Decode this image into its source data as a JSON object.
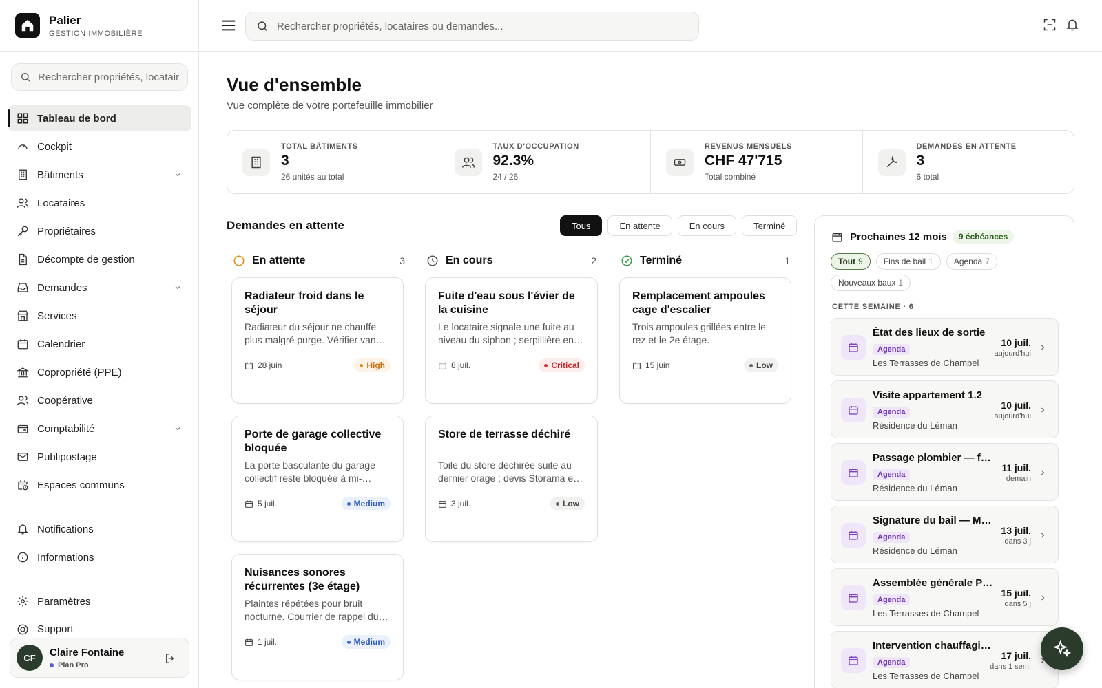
{
  "brand": {
    "name": "Palier",
    "subtitle": "GESTION IMMOBILIÈRE"
  },
  "sidebar": {
    "search_placeholder": "Rechercher propriétés, locataires ou demandes...",
    "items": [
      {
        "label": "Tableau de bord",
        "icon": "grid-icon",
        "active": true
      },
      {
        "label": "Cockpit",
        "icon": "gauge-icon"
      },
      {
        "label": "Bâtiments",
        "icon": "building-icon",
        "expandable": true
      },
      {
        "label": "Locataires",
        "icon": "users-icon"
      },
      {
        "label": "Propriétaires",
        "icon": "key-icon"
      },
      {
        "label": "Décompte de gestion",
        "icon": "document-icon"
      },
      {
        "label": "Demandes",
        "icon": "inbox-icon",
        "expandable": true
      },
      {
        "label": "Services",
        "icon": "store-icon"
      },
      {
        "label": "Calendrier",
        "icon": "calendar-icon"
      },
      {
        "label": "Copropriété (PPE)",
        "icon": "bank-icon"
      },
      {
        "label": "Coopérative",
        "icon": "users-icon"
      },
      {
        "label": "Comptabilité",
        "icon": "wallet-icon",
        "expandable": true
      },
      {
        "label": "Publipostage",
        "icon": "mail-icon"
      },
      {
        "label": "Espaces communs",
        "icon": "calendar-clock-icon"
      },
      {
        "label": "Notifications",
        "icon": "bell-icon"
      },
      {
        "label": "Informations",
        "icon": "info-icon"
      },
      {
        "label": "Paramètres",
        "icon": "gear-icon"
      },
      {
        "label": "Support",
        "icon": "lifebuoy-icon"
      }
    ],
    "user": {
      "initials": "CF",
      "name": "Claire Fontaine",
      "plan": "Plan Pro"
    }
  },
  "header": {
    "search_placeholder": "Rechercher propriétés, locataires ou demandes..."
  },
  "main": {
    "title": "Vue d'ensemble",
    "subtitle": "Vue complète de votre portefeuille immobilier",
    "stats": [
      {
        "label": "TOTAL BÂTIMENTS",
        "value": "3",
        "note": "26 unités au total",
        "icon": "building-icon"
      },
      {
        "label": "TAUX D'OCCUPATION",
        "value": "92.3%",
        "note": "24 / 26",
        "icon": "users-icon"
      },
      {
        "label": "REVENUS MENSUELS",
        "value": "CHF 47'715",
        "note": "Total combiné",
        "icon": "banknote-icon"
      },
      {
        "label": "DEMANDES EN ATTENTE",
        "value": "3",
        "note": "6 total",
        "icon": "wrench-icon"
      }
    ],
    "requests_title": "Demandes en attente",
    "filters": [
      "Tous",
      "En attente",
      "En cours",
      "Terminé"
    ],
    "columns": [
      {
        "title": "En attente",
        "count": "3",
        "status_color": "#e58c10",
        "cards": [
          {
            "title": "Radiateur froid dans le séjour",
            "desc": "Radiateur du séjour ne chauffe plus malgré purge. Vérifier vanne thermostatique.",
            "date": "28 juin",
            "priority": "High"
          },
          {
            "title": "Porte de garage collective bloquée",
            "desc": "La porte basculante du garage collectif reste bloquée à mi-course.",
            "date": "5 juil.",
            "priority": "Medium"
          },
          {
            "title": "Nuisances sonores récurrentes (3e étage)",
            "desc": "Plaintes répétées pour bruit nocturne. Courrier de rappel du règlement.",
            "date": "1 juil.",
            "priority": "Medium"
          }
        ]
      },
      {
        "title": "En cours",
        "count": "2",
        "status_color": "#555555",
        "cards": [
          {
            "title": "Fuite d'eau sous l'évier de la cuisine",
            "desc": "Le locataire signale une fuite au niveau du siphon ; serpillière en place.",
            "date": "8 juil.",
            "priority": "Critical"
          },
          {
            "title": "Store de terrasse déchiré",
            "desc": "Toile du store déchirée suite au dernier orage ; devis Storama en attente.",
            "date": "3 juil.",
            "priority": "Low"
          }
        ]
      },
      {
        "title": "Terminé",
        "count": "1",
        "status_color": "#3c9a4a",
        "cards": [
          {
            "title": "Remplacement ampoules cage d'escalier",
            "desc": "Trois ampoules grillées entre le rez et le 2e étage.",
            "date": "15 juin",
            "priority": "Low"
          }
        ]
      }
    ]
  },
  "agenda": {
    "title": "Prochaines 12 mois",
    "badge": "9 échéances",
    "tabs": [
      {
        "label": "Tout",
        "count": "9",
        "active": true
      },
      {
        "label": "Fins de bail",
        "count": "1"
      },
      {
        "label": "Agenda",
        "count": "7"
      },
      {
        "label": "Nouveaux baux",
        "count": "1"
      }
    ],
    "week_label": "CETTE SEMAINE · 6",
    "events": [
      {
        "title": "État des lieux de sortie",
        "tag": "Agenda",
        "place": "Les Terrasses de Champel",
        "date": "10 juil.",
        "rel": "aujourd'hui"
      },
      {
        "title": "Visite appartement 1.2",
        "tag": "Agenda",
        "place": "Résidence du Léman",
        "date": "10 juil.",
        "rel": "aujourd'hui"
      },
      {
        "title": "Passage plombier — fuite",
        "tag": "Agenda",
        "place": "Résidence du Léman",
        "date": "11 juil.",
        "rel": "demain"
      },
      {
        "title": "Signature du bail — Martin",
        "tag": "Agenda",
        "place": "Résidence du Léman",
        "date": "13 juil.",
        "rel": "dans 3 j"
      },
      {
        "title": "Assemblée générale PPE",
        "tag": "Agenda",
        "place": "Les Terrasses de Champel",
        "date": "15 juil.",
        "rel": "dans 5 j"
      },
      {
        "title": "Intervention chauffagiste",
        "tag": "Agenda",
        "place": "Les Terrasses de Champel",
        "date": "17 juil.",
        "rel": "dans 1 sem."
      }
    ]
  }
}
